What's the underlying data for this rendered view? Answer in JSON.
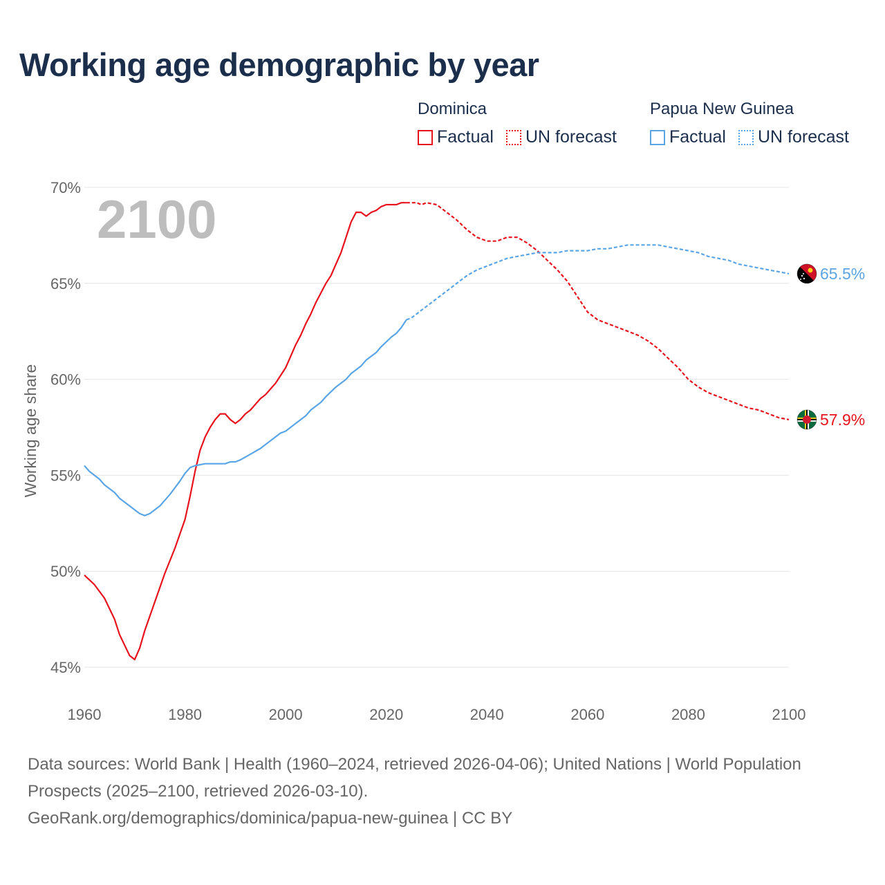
{
  "title": "Working age demographic by year",
  "legend": {
    "dominica": {
      "name": "Dominica",
      "factual": "Factual",
      "forecast": "UN forecast",
      "color": "#e8131c"
    },
    "png": {
      "name": "Papua New Guinea",
      "factual": "Factual",
      "forecast": "UN forecast",
      "color": "#5aa5e6"
    }
  },
  "footer": {
    "sources": "Data sources: World Bank | Health (1960–2024, retrieved 2026-04-06); United Nations | World Population Prospects (2025–2100, retrieved 2026-03-10).",
    "link": "GeoRank.org/demographics/dominica/papua-new-guinea | CC BY"
  },
  "chart_data": {
    "type": "line",
    "title": "Working age demographic by year",
    "xlabel": "",
    "ylabel": "Working age share",
    "xlim": [
      1960,
      2100
    ],
    "ylim": [
      45,
      70
    ],
    "xticks": [
      1960,
      1980,
      2000,
      2020,
      2040,
      2060,
      2080,
      2100
    ],
    "yticks": [
      45,
      50,
      55,
      60,
      65,
      70
    ],
    "ytick_labels": [
      "45%",
      "50%",
      "55%",
      "60%",
      "65%",
      "70%"
    ],
    "xtick_labels": [
      "1960",
      "1980",
      "2000",
      "2020",
      "2040",
      "2060",
      "2080",
      "2100"
    ],
    "year_label": "2100",
    "factual_end_year": 2024,
    "series": [
      {
        "name": "Dominica",
        "color": "#e8131c",
        "end_label": "57.9%",
        "points": [
          [
            1960,
            49.8
          ],
          [
            1962,
            49.3
          ],
          [
            1964,
            48.6
          ],
          [
            1966,
            47.5
          ],
          [
            1967,
            46.7
          ],
          [
            1969,
            45.6
          ],
          [
            1970,
            45.4
          ],
          [
            1971,
            46.0
          ],
          [
            1972,
            46.9
          ],
          [
            1974,
            48.4
          ],
          [
            1976,
            49.9
          ],
          [
            1978,
            51.2
          ],
          [
            1980,
            52.7
          ],
          [
            1981,
            53.9
          ],
          [
            1982,
            55.2
          ],
          [
            1983,
            56.3
          ],
          [
            1984,
            57.0
          ],
          [
            1985,
            57.5
          ],
          [
            1986,
            57.9
          ],
          [
            1987,
            58.2
          ],
          [
            1988,
            58.2
          ],
          [
            1989,
            57.9
          ],
          [
            1990,
            57.7
          ],
          [
            1991,
            57.9
          ],
          [
            1992,
            58.2
          ],
          [
            1993,
            58.4
          ],
          [
            1994,
            58.7
          ],
          [
            1995,
            59.0
          ],
          [
            1996,
            59.2
          ],
          [
            1997,
            59.5
          ],
          [
            1998,
            59.8
          ],
          [
            1999,
            60.2
          ],
          [
            2000,
            60.6
          ],
          [
            2001,
            61.2
          ],
          [
            2002,
            61.8
          ],
          [
            2003,
            62.3
          ],
          [
            2004,
            62.9
          ],
          [
            2005,
            63.4
          ],
          [
            2006,
            64.0
          ],
          [
            2007,
            64.5
          ],
          [
            2008,
            65.0
          ],
          [
            2009,
            65.4
          ],
          [
            2010,
            66.0
          ],
          [
            2011,
            66.6
          ],
          [
            2012,
            67.4
          ],
          [
            2013,
            68.2
          ],
          [
            2014,
            68.7
          ],
          [
            2015,
            68.7
          ],
          [
            2016,
            68.5
          ],
          [
            2017,
            68.7
          ],
          [
            2018,
            68.8
          ],
          [
            2019,
            69.0
          ],
          [
            2020,
            69.1
          ],
          [
            2021,
            69.1
          ],
          [
            2022,
            69.1
          ],
          [
            2023,
            69.2
          ],
          [
            2024,
            69.2
          ],
          [
            2025,
            69.2
          ],
          [
            2026,
            69.2
          ],
          [
            2027,
            69.1
          ],
          [
            2028,
            69.2
          ],
          [
            2030,
            69.1
          ],
          [
            2032,
            68.7
          ],
          [
            2034,
            68.3
          ],
          [
            2036,
            67.8
          ],
          [
            2038,
            67.4
          ],
          [
            2040,
            67.2
          ],
          [
            2042,
            67.2
          ],
          [
            2044,
            67.4
          ],
          [
            2046,
            67.4
          ],
          [
            2048,
            67.1
          ],
          [
            2050,
            66.7
          ],
          [
            2052,
            66.2
          ],
          [
            2054,
            65.7
          ],
          [
            2056,
            65.1
          ],
          [
            2058,
            64.3
          ],
          [
            2060,
            63.5
          ],
          [
            2062,
            63.1
          ],
          [
            2064,
            62.9
          ],
          [
            2066,
            62.7
          ],
          [
            2068,
            62.5
          ],
          [
            2070,
            62.3
          ],
          [
            2072,
            62.0
          ],
          [
            2074,
            61.6
          ],
          [
            2076,
            61.1
          ],
          [
            2078,
            60.6
          ],
          [
            2080,
            60.0
          ],
          [
            2082,
            59.6
          ],
          [
            2084,
            59.3
          ],
          [
            2086,
            59.1
          ],
          [
            2088,
            58.9
          ],
          [
            2090,
            58.7
          ],
          [
            2092,
            58.5
          ],
          [
            2094,
            58.4
          ],
          [
            2096,
            58.2
          ],
          [
            2098,
            58.0
          ],
          [
            2100,
            57.9
          ]
        ]
      },
      {
        "name": "Papua New Guinea",
        "color": "#5aa5e6",
        "end_label": "65.5%",
        "points": [
          [
            1960,
            55.5
          ],
          [
            1961,
            55.2
          ],
          [
            1963,
            54.8
          ],
          [
            1964,
            54.5
          ],
          [
            1966,
            54.1
          ],
          [
            1967,
            53.8
          ],
          [
            1969,
            53.4
          ],
          [
            1970,
            53.2
          ],
          [
            1971,
            53.0
          ],
          [
            1972,
            52.9
          ],
          [
            1973,
            53.0
          ],
          [
            1975,
            53.4
          ],
          [
            1977,
            54.0
          ],
          [
            1979,
            54.7
          ],
          [
            1980,
            55.1
          ],
          [
            1981,
            55.4
          ],
          [
            1982,
            55.5
          ],
          [
            1984,
            55.6
          ],
          [
            1986,
            55.6
          ],
          [
            1988,
            55.6
          ],
          [
            1989,
            55.7
          ],
          [
            1990,
            55.7
          ],
          [
            1991,
            55.8
          ],
          [
            1993,
            56.1
          ],
          [
            1995,
            56.4
          ],
          [
            1997,
            56.8
          ],
          [
            1999,
            57.2
          ],
          [
            2000,
            57.3
          ],
          [
            2002,
            57.7
          ],
          [
            2004,
            58.1
          ],
          [
            2005,
            58.4
          ],
          [
            2007,
            58.8
          ],
          [
            2008,
            59.1
          ],
          [
            2010,
            59.6
          ],
          [
            2012,
            60.0
          ],
          [
            2013,
            60.3
          ],
          [
            2015,
            60.7
          ],
          [
            2016,
            61.0
          ],
          [
            2018,
            61.4
          ],
          [
            2019,
            61.7
          ],
          [
            2021,
            62.2
          ],
          [
            2022,
            62.4
          ],
          [
            2023,
            62.7
          ],
          [
            2024,
            63.1
          ],
          [
            2025,
            63.2
          ],
          [
            2026,
            63.4
          ],
          [
            2028,
            63.8
          ],
          [
            2030,
            64.2
          ],
          [
            2032,
            64.6
          ],
          [
            2034,
            65.0
          ],
          [
            2036,
            65.4
          ],
          [
            2038,
            65.7
          ],
          [
            2040,
            65.9
          ],
          [
            2042,
            66.1
          ],
          [
            2044,
            66.3
          ],
          [
            2046,
            66.4
          ],
          [
            2048,
            66.5
          ],
          [
            2050,
            66.6
          ],
          [
            2054,
            66.6
          ],
          [
            2056,
            66.7
          ],
          [
            2060,
            66.7
          ],
          [
            2062,
            66.8
          ],
          [
            2064,
            66.8
          ],
          [
            2066,
            66.9
          ],
          [
            2068,
            67.0
          ],
          [
            2072,
            67.0
          ],
          [
            2074,
            67.0
          ],
          [
            2076,
            66.9
          ],
          [
            2080,
            66.7
          ],
          [
            2082,
            66.6
          ],
          [
            2084,
            66.4
          ],
          [
            2086,
            66.3
          ],
          [
            2088,
            66.2
          ],
          [
            2090,
            66.0
          ],
          [
            2092,
            65.9
          ],
          [
            2094,
            65.8
          ],
          [
            2096,
            65.7
          ],
          [
            2098,
            65.6
          ],
          [
            2100,
            65.5
          ]
        ]
      }
    ]
  },
  "flags": {
    "png_icon": "papua-new-guinea-flag-icon",
    "dominica_icon": "dominica-flag-icon"
  }
}
